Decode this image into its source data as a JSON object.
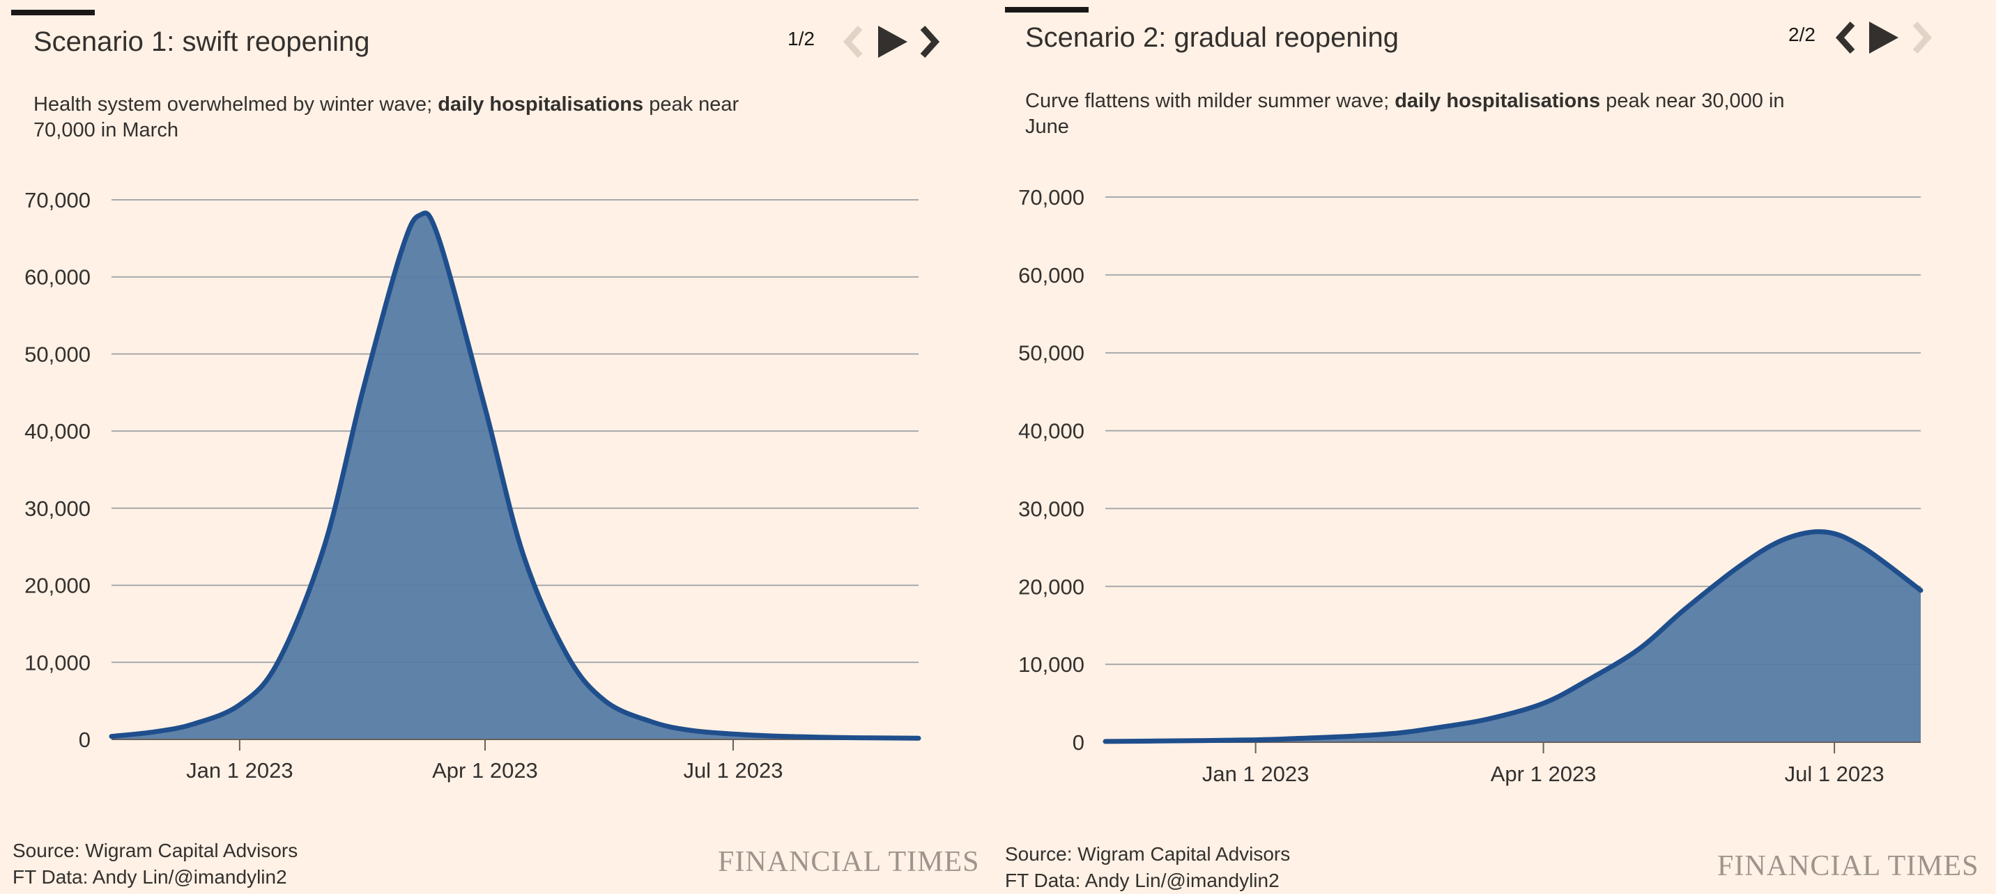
{
  "panels": [
    {
      "title": "Scenario 1: swift reopening",
      "subtitle_pre": "Health system overwhelmed by winter wave; ",
      "subtitle_bold": "daily hospitalisations",
      "subtitle_post": " peak near 70,000 in March",
      "counter": "1/2",
      "nav": {
        "prev_icon": "chevron-left-icon",
        "play_icon": "play-icon",
        "next_icon": "chevron-right-icon",
        "prev_enabled": false,
        "next_enabled": true
      },
      "source_line1": "Source: Wigram Capital Advisors",
      "source_line2": "FT Data: Andy Lin/@imandylin2",
      "brand": "FINANCIAL TIMES"
    },
    {
      "title": "Scenario 2: gradual reopening",
      "subtitle_pre": "Curve flattens with milder summer wave; ",
      "subtitle_bold": "daily hospitalisations",
      "subtitle_post": " peak near 30,000 in June",
      "counter": "2/2",
      "nav": {
        "prev_icon": "chevron-left-icon",
        "play_icon": "play-icon",
        "next_icon": "chevron-right-icon",
        "prev_enabled": true,
        "next_enabled": false
      },
      "source_line1": "Source: Wigram Capital Advisors",
      "source_line2": "FT Data: Andy Lin/@imandylin2",
      "brand": "FINANCIAL TIMES"
    }
  ],
  "colors": {
    "background": "#fff1e5",
    "line": "#1f4e8c",
    "fill": "#5f82a9",
    "grid": "#c9bfb5",
    "nav_disabled": "#e2d3c6",
    "nav_enabled": "#33302e"
  },
  "chart_data": [
    {
      "type": "area",
      "title": "Scenario 1: swift reopening",
      "xlabel": "",
      "ylabel": "",
      "ylim": [
        0,
        70000
      ],
      "yticks": [
        0,
        10000,
        20000,
        30000,
        40000,
        50000,
        60000,
        70000
      ],
      "ytick_labels": [
        "0",
        "10,000",
        "20,000",
        "30,000",
        "40,000",
        "50,000",
        "60,000",
        "70,000"
      ],
      "xlim": [
        "2022-11-15",
        "2023-09-07"
      ],
      "xticks": [
        "2023-01-01",
        "2023-04-01",
        "2023-07-01"
      ],
      "xtick_labels": [
        "Jan 1 2023",
        "Apr 1 2023",
        "Jul 1 2023"
      ],
      "grid": true,
      "x": [
        "2022-11-15",
        "2022-12-01",
        "2022-12-15",
        "2023-01-01",
        "2023-01-15",
        "2023-02-01",
        "2023-02-15",
        "2023-03-01",
        "2023-03-08",
        "2023-03-15",
        "2023-04-01",
        "2023-04-15",
        "2023-05-01",
        "2023-05-15",
        "2023-06-01",
        "2023-06-15",
        "2023-07-01",
        "2023-07-15",
        "2023-08-01",
        "2023-08-15",
        "2023-09-07"
      ],
      "y": [
        400,
        1000,
        2000,
        4500,
        10000,
        25000,
        45000,
        63000,
        68000,
        65000,
        43000,
        24000,
        11000,
        5000,
        2300,
        1200,
        700,
        450,
        300,
        220,
        150
      ]
    },
    {
      "type": "area",
      "title": "Scenario 2: gradual reopening",
      "xlabel": "",
      "ylabel": "",
      "ylim": [
        0,
        70000
      ],
      "yticks": [
        0,
        10000,
        20000,
        30000,
        40000,
        50000,
        60000,
        70000
      ],
      "ytick_labels": [
        "0",
        "10,000",
        "20,000",
        "30,000",
        "40,000",
        "50,000",
        "60,000",
        "70,000"
      ],
      "xlim": [
        "2022-11-15",
        "2023-07-28"
      ],
      "xticks": [
        "2023-01-01",
        "2023-04-01",
        "2023-07-01"
      ],
      "xtick_labels": [
        "Jan 1 2023",
        "Apr 1 2023",
        "Jul 1 2023"
      ],
      "grid": true,
      "x": [
        "2022-11-15",
        "2022-12-01",
        "2023-01-01",
        "2023-01-15",
        "2023-02-01",
        "2023-02-15",
        "2023-03-01",
        "2023-03-15",
        "2023-04-01",
        "2023-04-15",
        "2023-05-01",
        "2023-05-15",
        "2023-06-01",
        "2023-06-15",
        "2023-06-28",
        "2023-07-10",
        "2023-07-28"
      ],
      "y": [
        100,
        150,
        300,
        500,
        800,
        1200,
        2000,
        3000,
        5000,
        8000,
        12000,
        17000,
        22500,
        26000,
        27000,
        25000,
        19500
      ]
    }
  ]
}
